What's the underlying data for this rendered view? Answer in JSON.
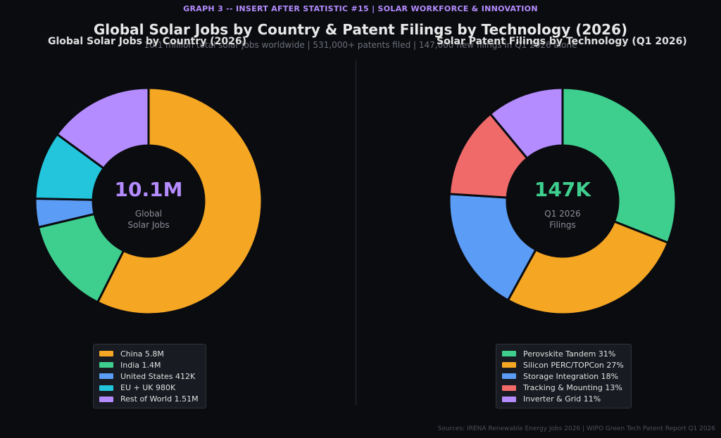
{
  "header": {
    "tag": "GRAPH 3  --  INSERT AFTER STATISTIC #15  |  SOLAR WORKFORCE & INNOVATION",
    "title": "Global Solar Jobs by Country  &  Patent Filings by Technology (2026)",
    "subtitle": "10.1 million total solar jobs worldwide  |  531,000+ patents filed  |  147,000 new filings in Q1 2026 alone"
  },
  "source": "Sources: IRENA Renewable Energy Jobs 2026  |  WIPO Green Tech Patent Report Q1 2026",
  "chart_data": [
    {
      "type": "pie",
      "donut": true,
      "title": "Global Solar Jobs by Country (2026)",
      "center_value": "10.1M",
      "center_label_line1": "Global",
      "center_label_line2": "Solar Jobs",
      "center_color": "#b48cff",
      "unit": "millions of jobs",
      "legend_position": "bottom",
      "slices": [
        {
          "label": "China",
          "value": 5.8,
          "legend": "China  5.8M",
          "color": "#f5a623"
        },
        {
          "label": "India",
          "value": 1.4,
          "legend": "India  1.4M",
          "color": "#3ecf8e"
        },
        {
          "label": "United States",
          "value": 0.412,
          "legend": "United States  412K",
          "color": "#5b9cf6"
        },
        {
          "label": "EU + UK",
          "value": 0.98,
          "legend": "EU + UK  980K",
          "color": "#22c5dc"
        },
        {
          "label": "Rest of World",
          "value": 1.51,
          "legend": "Rest of World  1.51M",
          "color": "#b48cff"
        }
      ]
    },
    {
      "type": "pie",
      "donut": true,
      "title": "Solar Patent Filings by Technology (Q1 2026)",
      "center_value": "147K",
      "center_label_line1": "Q1 2026",
      "center_label_line2": "Filings",
      "center_color": "#3ecf8e",
      "unit": "percent",
      "legend_position": "bottom",
      "slices": [
        {
          "label": "Perovskite Tandem",
          "value": 31,
          "legend": "Perovskite Tandem  31%",
          "color": "#3ecf8e"
        },
        {
          "label": "Silicon PERC/TOPCon",
          "value": 27,
          "legend": "Silicon PERC/TOPCon  27%",
          "color": "#f5a623"
        },
        {
          "label": "Storage Integration",
          "value": 18,
          "legend": "Storage Integration  18%",
          "color": "#5b9cf6"
        },
        {
          "label": "Tracking & Mounting",
          "value": 13,
          "legend": "Tracking & Mounting  13%",
          "color": "#f06a6a"
        },
        {
          "label": "Inverter & Grid",
          "value": 11,
          "legend": "Inverter & Grid  11%",
          "color": "#b48cff"
        }
      ]
    }
  ]
}
